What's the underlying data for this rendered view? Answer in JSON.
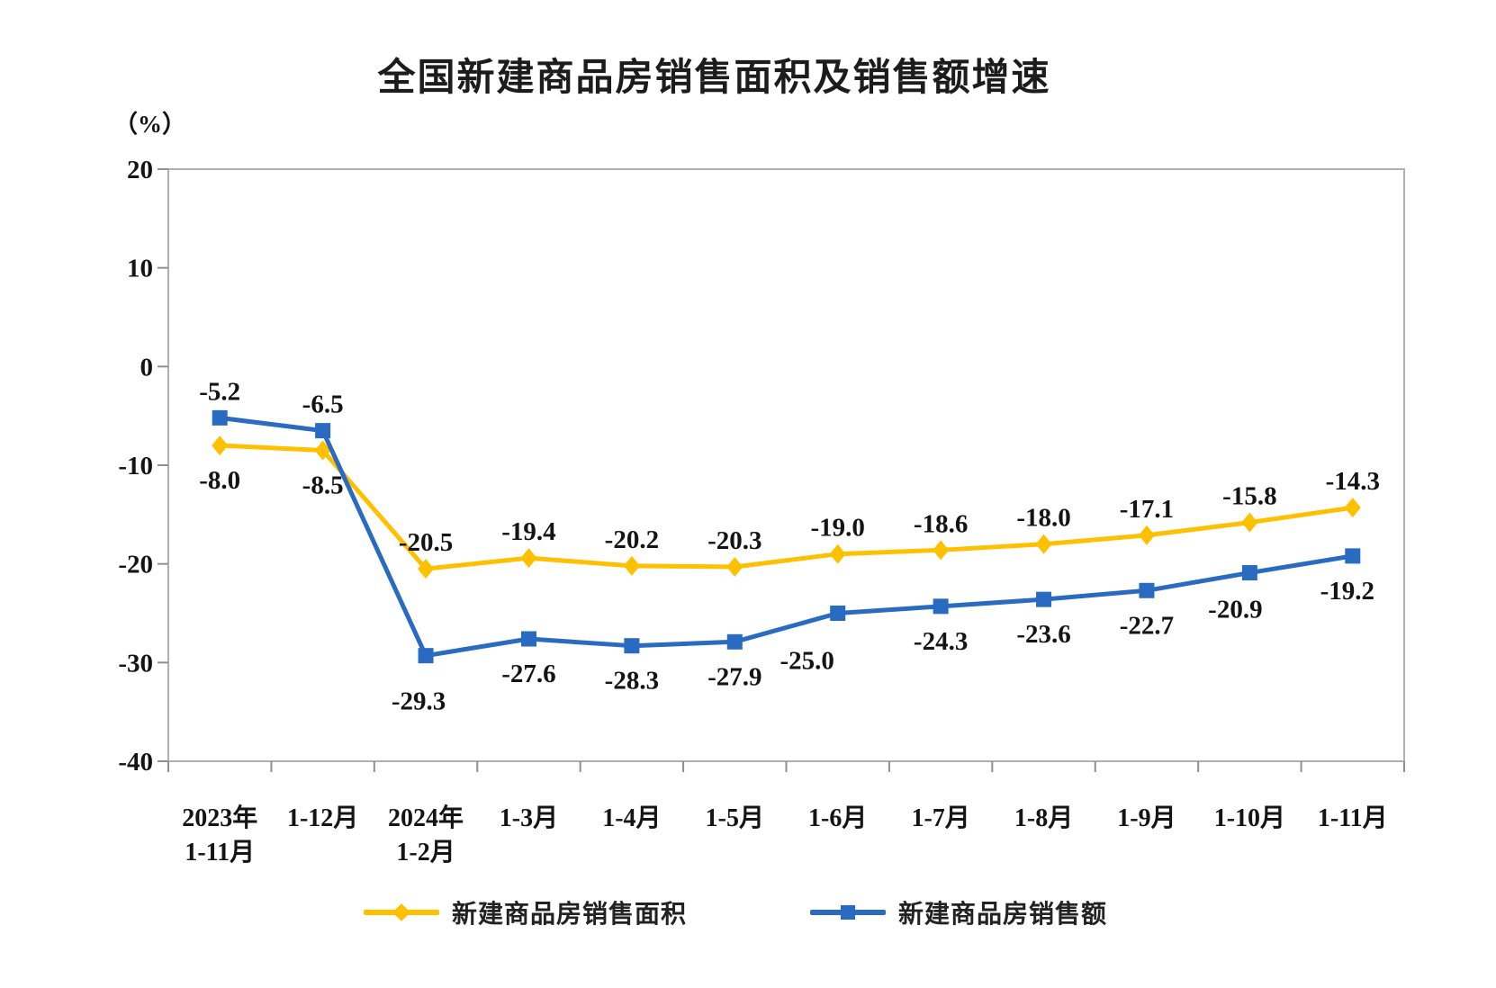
{
  "title": "全国新建商品房销售面积及销售额增速",
  "y_axis": {
    "unit_label": "（%）",
    "tick_labels": [
      "20",
      "10",
      "0",
      "-10",
      "-20",
      "-30",
      "-40"
    ],
    "tick_values": [
      20,
      10,
      0,
      -10,
      -20,
      -30,
      -40
    ]
  },
  "x_axis": {
    "labels_line1": [
      "2023年",
      "1-12月",
      "2024年",
      "1-3月",
      "1-4月",
      "1-5月",
      "1-6月",
      "1-7月",
      "1-8月",
      "1-9月",
      "1-10月",
      "1-11月"
    ],
    "labels_line2": [
      "1-11月",
      "",
      "1-2月",
      "",
      "",
      "",
      "",
      "",
      "",
      "",
      "",
      ""
    ]
  },
  "chart_data": {
    "type": "line",
    "title": "全国新建商品房销售面积及销售额增速",
    "xlabel": "",
    "ylabel": "（%）",
    "ylim": [
      -40,
      20
    ],
    "grid": false,
    "legend_position": "bottom",
    "categories": [
      "2023年1-11月",
      "1-12月",
      "2024年1-2月",
      "1-3月",
      "1-4月",
      "1-5月",
      "1-6月",
      "1-7月",
      "1-8月",
      "1-9月",
      "1-10月",
      "1-11月"
    ],
    "series": [
      {
        "name": "新建商品房销售面积",
        "color": "#FFC000",
        "marker": "diamond",
        "values": [
          -8.0,
          -8.5,
          -20.5,
          -19.4,
          -20.2,
          -20.3,
          -19.0,
          -18.6,
          -18.0,
          -17.1,
          -15.8,
          -14.3
        ],
        "label_side": [
          "below",
          "below",
          "above",
          "above",
          "above",
          "above",
          "above",
          "above",
          "above",
          "above",
          "above",
          "above"
        ]
      },
      {
        "name": "新建商品房销售额",
        "color": "#2A6BC2",
        "marker": "square",
        "values": [
          -5.2,
          -6.5,
          -29.3,
          -27.6,
          -28.3,
          -27.9,
          -25.0,
          -24.3,
          -23.6,
          -22.7,
          -20.9,
          -19.2
        ],
        "label_side": [
          "above",
          "above",
          "below",
          "below",
          "below",
          "below",
          "below",
          "below",
          "below",
          "below",
          "below",
          "below"
        ]
      }
    ]
  },
  "legend": {
    "items": [
      {
        "label": "新建商品房销售面积"
      },
      {
        "label": "新建商品房销售额"
      }
    ]
  }
}
